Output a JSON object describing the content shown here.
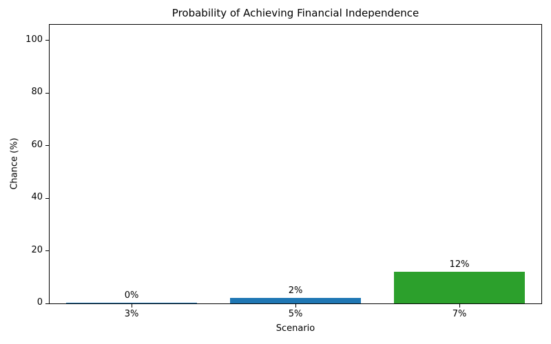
{
  "figure": {
    "background": "#ffffff"
  },
  "chart_data": {
    "type": "bar",
    "title": "Probability of Achieving Financial Independence",
    "xlabel": "Scenario",
    "ylabel": "Chance (%)",
    "categories": [
      "3%",
      "5%",
      "7%"
    ],
    "values": [
      0.3,
      2,
      12
    ],
    "bar_labels": [
      "0%",
      "2%",
      "12%"
    ],
    "bar_colors": [
      "#1f77b4",
      "#1f77b4",
      "#2ca02c"
    ],
    "ylim": [
      0,
      106
    ],
    "yticks": [
      0,
      20,
      40,
      60,
      80,
      100
    ],
    "grid": false,
    "legend_position": "none",
    "bar_width_fraction": 0.8,
    "axis_color": "#000000",
    "text_color": "#000000"
  }
}
